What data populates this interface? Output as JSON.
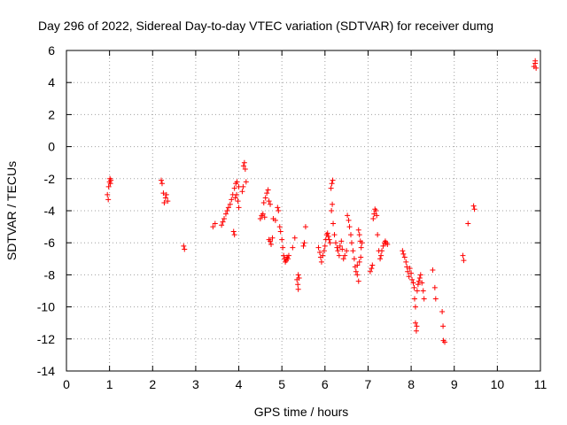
{
  "chart_data": {
    "type": "scatter",
    "title": "Day 296 of 2022, Sidereal Day-to-day VTEC variation (SDTVAR) for receiver dumg",
    "xlabel": "GPS time / hours",
    "ylabel": "SDTVAR / TECUs",
    "xlim": [
      0,
      11
    ],
    "ylim": [
      -14,
      6
    ],
    "x_ticks": [
      0,
      1,
      2,
      3,
      4,
      5,
      6,
      7,
      8,
      9,
      10,
      11
    ],
    "y_ticks": [
      -14,
      -12,
      -10,
      -8,
      -6,
      -4,
      -2,
      0,
      2,
      4,
      6
    ],
    "grid": true,
    "marker": "+",
    "series": [
      {
        "name": "SDTVAR",
        "color": "#ff0000",
        "points": [
          [
            0.95,
            -3.0
          ],
          [
            0.97,
            -3.3
          ],
          [
            0.98,
            -2.5
          ],
          [
            1.0,
            -2.2
          ],
          [
            1.01,
            -2.0
          ],
          [
            1.02,
            -2.3
          ],
          [
            1.03,
            -2.1
          ],
          [
            2.2,
            -2.1
          ],
          [
            2.22,
            -2.3
          ],
          [
            2.25,
            -2.9
          ],
          [
            2.27,
            -3.5
          ],
          [
            2.3,
            -3.2
          ],
          [
            2.32,
            -3.0
          ],
          [
            2.35,
            -3.4
          ],
          [
            2.72,
            -6.2
          ],
          [
            2.74,
            -6.4
          ],
          [
            3.4,
            -5.0
          ],
          [
            3.45,
            -4.8
          ],
          [
            3.6,
            -4.9
          ],
          [
            3.63,
            -4.7
          ],
          [
            3.66,
            -4.5
          ],
          [
            3.7,
            -4.2
          ],
          [
            3.73,
            -4.0
          ],
          [
            3.76,
            -3.8
          ],
          [
            3.8,
            -3.6
          ],
          [
            3.83,
            -3.3
          ],
          [
            3.86,
            -3.0
          ],
          [
            3.9,
            -2.6
          ],
          [
            3.93,
            -2.3
          ],
          [
            3.96,
            -2.2
          ],
          [
            3.98,
            -3.4
          ],
          [
            4.0,
            -3.8
          ],
          [
            3.88,
            -5.3
          ],
          [
            3.9,
            -5.5
          ],
          [
            3.95,
            -3.0
          ],
          [
            4.0,
            -2.5
          ],
          [
            3.92,
            -3.2
          ],
          [
            4.08,
            -2.8
          ],
          [
            4.1,
            -2.5
          ],
          [
            4.11,
            -1.2
          ],
          [
            4.13,
            -1.0
          ],
          [
            4.15,
            -1.4
          ],
          [
            4.17,
            -2.2
          ],
          [
            4.5,
            -4.5
          ],
          [
            4.53,
            -4.3
          ],
          [
            4.56,
            -4.2
          ],
          [
            4.6,
            -4.4
          ],
          [
            4.58,
            -3.5
          ],
          [
            4.62,
            -3.2
          ],
          [
            4.65,
            -2.9
          ],
          [
            4.68,
            -2.7
          ],
          [
            4.7,
            -3.4
          ],
          [
            4.73,
            -3.6
          ],
          [
            4.7,
            -5.8
          ],
          [
            4.73,
            -5.9
          ],
          [
            4.75,
            -6.1
          ],
          [
            4.78,
            -5.7
          ],
          [
            4.8,
            -4.5
          ],
          [
            4.85,
            -4.6
          ],
          [
            4.9,
            -3.8
          ],
          [
            4.92,
            -4.0
          ],
          [
            4.95,
            -5.0
          ],
          [
            4.97,
            -5.3
          ],
          [
            5.0,
            -5.8
          ],
          [
            5.02,
            -6.3
          ],
          [
            5.04,
            -6.8
          ],
          [
            5.06,
            -7.0
          ],
          [
            5.08,
            -7.2
          ],
          [
            5.1,
            -7.1
          ],
          [
            5.12,
            -6.9
          ],
          [
            5.14,
            -7.0
          ],
          [
            5.16,
            -6.8
          ],
          [
            5.25,
            -6.3
          ],
          [
            5.3,
            -5.7
          ],
          [
            5.35,
            -8.3
          ],
          [
            5.37,
            -8.6
          ],
          [
            5.38,
            -8.9
          ],
          [
            5.4,
            -8.2
          ],
          [
            5.38,
            -8.0
          ],
          [
            5.5,
            -6.2
          ],
          [
            5.52,
            -6.0
          ],
          [
            5.55,
            -5.0
          ],
          [
            5.85,
            -6.3
          ],
          [
            5.88,
            -6.6
          ],
          [
            5.9,
            -6.9
          ],
          [
            5.92,
            -7.2
          ],
          [
            5.95,
            -6.8
          ],
          [
            5.98,
            -6.5
          ],
          [
            6.0,
            -6.2
          ],
          [
            6.02,
            -5.8
          ],
          [
            6.04,
            -5.5
          ],
          [
            6.06,
            -5.4
          ],
          [
            6.08,
            -5.6
          ],
          [
            6.1,
            -5.8
          ],
          [
            6.12,
            -6.0
          ],
          [
            6.14,
            -2.6
          ],
          [
            6.16,
            -2.3
          ],
          [
            6.18,
            -2.1
          ],
          [
            6.15,
            -4.0
          ],
          [
            6.17,
            -3.6
          ],
          [
            6.19,
            -4.8
          ],
          [
            6.22,
            -5.5
          ],
          [
            6.25,
            -6.0
          ],
          [
            6.28,
            -6.3
          ],
          [
            6.3,
            -6.5
          ],
          [
            6.33,
            -6.8
          ],
          [
            6.35,
            -6.2
          ],
          [
            6.38,
            -5.9
          ],
          [
            6.4,
            -6.4
          ],
          [
            6.43,
            -7.0
          ],
          [
            6.46,
            -6.8
          ],
          [
            6.5,
            -6.5
          ],
          [
            6.52,
            -4.3
          ],
          [
            6.55,
            -4.6
          ],
          [
            6.57,
            -5.0
          ],
          [
            6.6,
            -5.5
          ],
          [
            6.62,
            -6.0
          ],
          [
            6.65,
            -6.5
          ],
          [
            6.68,
            -7.0
          ],
          [
            6.7,
            -7.5
          ],
          [
            6.72,
            -7.8
          ],
          [
            6.75,
            -7.4
          ],
          [
            6.78,
            -5.2
          ],
          [
            6.8,
            -5.5
          ],
          [
            6.82,
            -5.9
          ],
          [
            6.84,
            -6.3
          ],
          [
            6.86,
            -6.0
          ],
          [
            6.75,
            -8.0
          ],
          [
            6.78,
            -8.4
          ],
          [
            6.8,
            -7.2
          ],
          [
            6.83,
            -6.9
          ],
          [
            7.05,
            -7.8
          ],
          [
            7.08,
            -7.6
          ],
          [
            7.1,
            -7.4
          ],
          [
            7.12,
            -4.5
          ],
          [
            7.14,
            -4.2
          ],
          [
            7.16,
            -3.9
          ],
          [
            7.18,
            -4.0
          ],
          [
            7.2,
            -4.3
          ],
          [
            7.22,
            -5.5
          ],
          [
            7.25,
            -6.5
          ],
          [
            7.28,
            -7.0
          ],
          [
            7.3,
            -6.8
          ],
          [
            7.32,
            -6.5
          ],
          [
            7.35,
            -6.2
          ],
          [
            7.38,
            -6.0
          ],
          [
            7.4,
            -5.9
          ],
          [
            7.42,
            -6.0
          ],
          [
            7.45,
            -6.1
          ],
          [
            7.8,
            -6.5
          ],
          [
            7.82,
            -6.7
          ],
          [
            7.85,
            -6.9
          ],
          [
            7.88,
            -7.2
          ],
          [
            7.9,
            -7.5
          ],
          [
            7.92,
            -7.8
          ],
          [
            7.95,
            -8.1
          ],
          [
            7.97,
            -7.6
          ],
          [
            8.0,
            -7.9
          ],
          [
            8.02,
            -8.3
          ],
          [
            8.05,
            -8.5
          ],
          [
            8.07,
            -8.8
          ],
          [
            8.08,
            -9.5
          ],
          [
            8.1,
            -10.0
          ],
          [
            8.1,
            -11.0
          ],
          [
            8.12,
            -11.5
          ],
          [
            8.13,
            -11.2
          ],
          [
            8.14,
            -9.0
          ],
          [
            8.16,
            -8.6
          ],
          [
            8.18,
            -8.4
          ],
          [
            8.2,
            -8.2
          ],
          [
            8.22,
            -8.0
          ],
          [
            8.25,
            -8.5
          ],
          [
            8.28,
            -9.0
          ],
          [
            8.3,
            -9.5
          ],
          [
            8.5,
            -7.7
          ],
          [
            8.55,
            -8.8
          ],
          [
            8.57,
            -9.5
          ],
          [
            8.72,
            -10.3
          ],
          [
            8.74,
            -11.2
          ],
          [
            8.75,
            -12.1
          ],
          [
            8.78,
            -12.2
          ],
          [
            9.2,
            -6.8
          ],
          [
            9.22,
            -7.1
          ],
          [
            9.32,
            -4.8
          ],
          [
            9.45,
            -3.7
          ],
          [
            9.47,
            -3.9
          ],
          [
            10.85,
            5.0
          ],
          [
            10.88,
            5.2
          ],
          [
            10.9,
            4.9
          ],
          [
            10.88,
            5.35
          ]
        ]
      }
    ]
  }
}
